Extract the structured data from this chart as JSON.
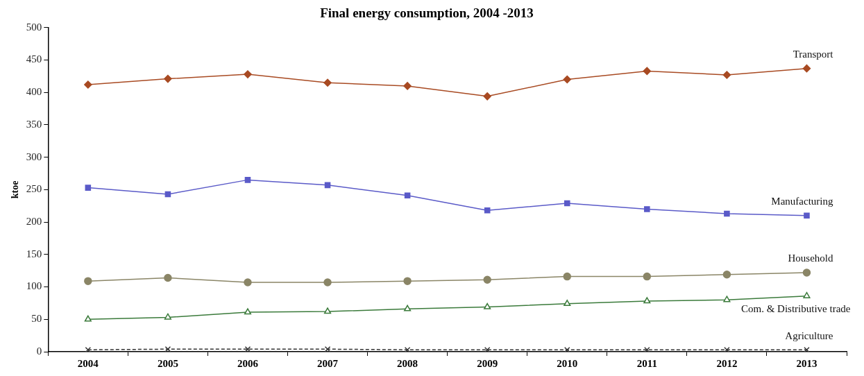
{
  "chart_data": {
    "type": "line",
    "title": "Final energy consumption, 2004 -2013",
    "ylabel": "ktoe",
    "categories": [
      "2004",
      "2005",
      "2006",
      "2007",
      "2008",
      "2009",
      "2010",
      "2011",
      "2012",
      "2013"
    ],
    "series": [
      {
        "name": "Transport",
        "color": "#a84a22",
        "marker": "diamond",
        "values": [
          412,
          421,
          428,
          415,
          410,
          394,
          420,
          433,
          427,
          437
        ]
      },
      {
        "name": "Manufacturing",
        "color": "#5a5ac8",
        "marker": "square",
        "values": [
          253,
          243,
          265,
          257,
          241,
          218,
          229,
          220,
          213,
          210
        ]
      },
      {
        "name": "Household",
        "color": "#8a8566",
        "marker": "circle",
        "values": [
          109,
          114,
          107,
          107,
          109,
          111,
          116,
          116,
          119,
          122
        ]
      },
      {
        "name": "Com. & Distributive trade",
        "color": "#3a7a3a",
        "marker": "triangle",
        "values": [
          50,
          53,
          61,
          62,
          66,
          69,
          74,
          78,
          80,
          86
        ]
      },
      {
        "name": "Agriculture",
        "color": "#333333",
        "marker": "cross",
        "line_style": "dashed",
        "values": [
          3,
          4,
          4,
          4,
          3,
          3,
          3,
          3,
          3,
          3
        ]
      }
    ],
    "ylim": [
      0,
      500
    ],
    "yticks": [
      0,
      50,
      100,
      150,
      200,
      250,
      300,
      350,
      400,
      450,
      500
    ],
    "grid": false,
    "legend": false
  }
}
